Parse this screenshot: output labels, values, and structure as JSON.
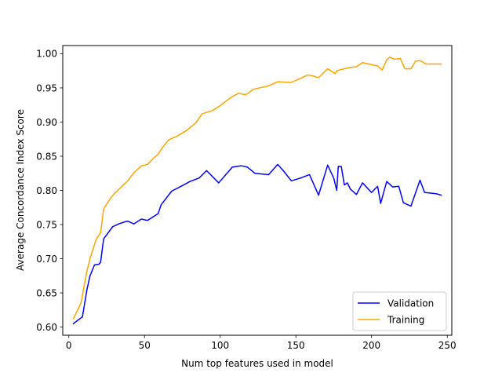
{
  "chart_data": {
    "type": "line",
    "title": "",
    "xlabel": "Num top features used in model",
    "ylabel": "Average Concordance Index Score",
    "xlim": [
      -4,
      253
    ],
    "ylim": [
      0.588,
      1.012
    ],
    "xticks": [
      0,
      50,
      100,
      150,
      200,
      250
    ],
    "yticks": [
      0.6,
      0.65,
      0.7,
      0.75,
      0.8,
      0.85,
      0.9,
      0.95,
      1.0
    ],
    "grid": false,
    "legend": {
      "position": "bottom-right"
    },
    "series": [
      {
        "name": "Validation",
        "color": "#0000ff",
        "points": [
          [
            3,
            0.605
          ],
          [
            9,
            0.615
          ],
          [
            12,
            0.655
          ],
          [
            14,
            0.675
          ],
          [
            17,
            0.691
          ],
          [
            20,
            0.692
          ],
          [
            21,
            0.695
          ],
          [
            23,
            0.729
          ],
          [
            25,
            0.735
          ],
          [
            29,
            0.747
          ],
          [
            33,
            0.751
          ],
          [
            37,
            0.754
          ],
          [
            39,
            0.755
          ],
          [
            43,
            0.751
          ],
          [
            48,
            0.758
          ],
          [
            52,
            0.756
          ],
          [
            59,
            0.766
          ],
          [
            61,
            0.779
          ],
          [
            68,
            0.799
          ],
          [
            75,
            0.807
          ],
          [
            80,
            0.813
          ],
          [
            86,
            0.818
          ],
          [
            91,
            0.829
          ],
          [
            99,
            0.811
          ],
          [
            108,
            0.834
          ],
          [
            114,
            0.836
          ],
          [
            118,
            0.834
          ],
          [
            123,
            0.825
          ],
          [
            132,
            0.823
          ],
          [
            138,
            0.838
          ],
          [
            142,
            0.828
          ],
          [
            147,
            0.814
          ],
          [
            153,
            0.818
          ],
          [
            159,
            0.823
          ],
          [
            165,
            0.793
          ],
          [
            171,
            0.837
          ],
          [
            175,
            0.818
          ],
          [
            177,
            0.8
          ],
          [
            178,
            0.835
          ],
          [
            180,
            0.835
          ],
          [
            182,
            0.808
          ],
          [
            184,
            0.811
          ],
          [
            186,
            0.802
          ],
          [
            190,
            0.794
          ],
          [
            194,
            0.811
          ],
          [
            200,
            0.797
          ],
          [
            204,
            0.806
          ],
          [
            206,
            0.781
          ],
          [
            210,
            0.813
          ],
          [
            214,
            0.805
          ],
          [
            218,
            0.806
          ],
          [
            221,
            0.782
          ],
          [
            226,
            0.777
          ],
          [
            232,
            0.815
          ],
          [
            235,
            0.797
          ],
          [
            243,
            0.795
          ],
          [
            246,
            0.793
          ]
        ]
      },
      {
        "name": "Training",
        "color": "#ffa500",
        "points": [
          [
            3,
            0.612
          ],
          [
            8,
            0.635
          ],
          [
            12,
            0.682
          ],
          [
            14,
            0.7
          ],
          [
            18,
            0.728
          ],
          [
            21,
            0.738
          ],
          [
            23,
            0.773
          ],
          [
            28,
            0.79
          ],
          [
            30,
            0.795
          ],
          [
            36,
            0.808
          ],
          [
            39,
            0.814
          ],
          [
            43,
            0.826
          ],
          [
            48,
            0.836
          ],
          [
            52,
            0.838
          ],
          [
            55,
            0.845
          ],
          [
            59,
            0.853
          ],
          [
            62,
            0.863
          ],
          [
            66,
            0.874
          ],
          [
            72,
            0.88
          ],
          [
            78,
            0.888
          ],
          [
            84,
            0.899
          ],
          [
            88,
            0.912
          ],
          [
            95,
            0.917
          ],
          [
            100,
            0.924
          ],
          [
            107,
            0.936
          ],
          [
            112,
            0.942
          ],
          [
            117,
            0.94
          ],
          [
            122,
            0.948
          ],
          [
            132,
            0.953
          ],
          [
            138,
            0.959
          ],
          [
            147,
            0.958
          ],
          [
            152,
            0.963
          ],
          [
            158,
            0.969
          ],
          [
            162,
            0.967
          ],
          [
            165,
            0.965
          ],
          [
            171,
            0.978
          ],
          [
            176,
            0.971
          ],
          [
            177,
            0.975
          ],
          [
            180,
            0.977
          ],
          [
            182,
            0.978
          ],
          [
            186,
            0.98
          ],
          [
            190,
            0.981
          ],
          [
            194,
            0.987
          ],
          [
            198,
            0.985
          ],
          [
            204,
            0.982
          ],
          [
            207,
            0.976
          ],
          [
            210,
            0.991
          ],
          [
            212,
            0.995
          ],
          [
            215,
            0.992
          ],
          [
            219,
            0.993
          ],
          [
            222,
            0.978
          ],
          [
            226,
            0.978
          ],
          [
            229,
            0.989
          ],
          [
            232,
            0.99
          ],
          [
            236,
            0.985
          ],
          [
            246,
            0.985
          ]
        ]
      }
    ]
  }
}
